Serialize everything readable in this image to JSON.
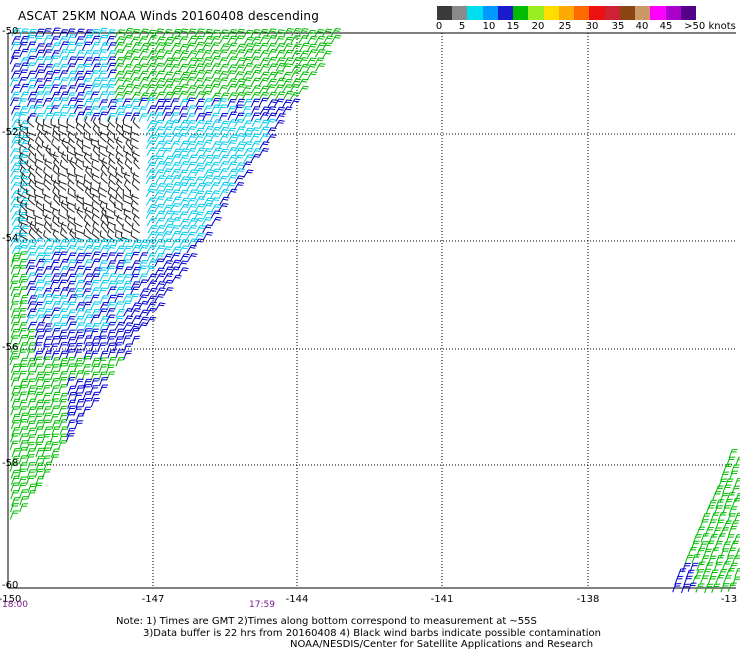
{
  "title": "ASCAT 25KM NOAA Winds 20160408 descending",
  "legend": {
    "segments": [
      {
        "color": "#3a3a3a"
      },
      {
        "color": "#8a8a8a"
      },
      {
        "color": "#00ddee"
      },
      {
        "color": "#0099ff"
      },
      {
        "color": "#1a1acc"
      },
      {
        "color": "#00bb00"
      },
      {
        "color": "#99ee22"
      },
      {
        "color": "#ffdd00"
      },
      {
        "color": "#ffaa00"
      },
      {
        "color": "#ff6a00"
      },
      {
        "color": "#ee1111"
      },
      {
        "color": "#cc2233"
      },
      {
        "color": "#8b4513"
      },
      {
        "color": "#cc9966"
      },
      {
        "color": "#ff00ff"
      },
      {
        "color": "#aa00cc"
      },
      {
        "color": "#550088"
      }
    ],
    "labels": [
      "0",
      "5",
      "10",
      "15",
      "20",
      "25",
      "30",
      "35",
      "40",
      "45",
      ">50 knots"
    ]
  },
  "x_axis": {
    "ticks": [
      "-150",
      "-147",
      "-144",
      "-141",
      "-138",
      "-13"
    ]
  },
  "y_axis": {
    "ticks": [
      "-50",
      "-52",
      "-54",
      "-56",
      "-58",
      "-60"
    ]
  },
  "times": {
    "left": "18:00",
    "mid": "17:59"
  },
  "notes": [
    "Note: 1) Times are GMT 2)Times along bottom correspond to measurement at ~55S",
    "3)Data buffer is 22 hrs from 20160408 4) Black wind barbs indicate possible contamination",
    "NOAA/NESDIS/Center for Satellite Applications and Research"
  ],
  "colors": {
    "black": "#222222",
    "cyan": "#00ccee",
    "blue": "#0000cc",
    "green": "#00bb00"
  }
}
